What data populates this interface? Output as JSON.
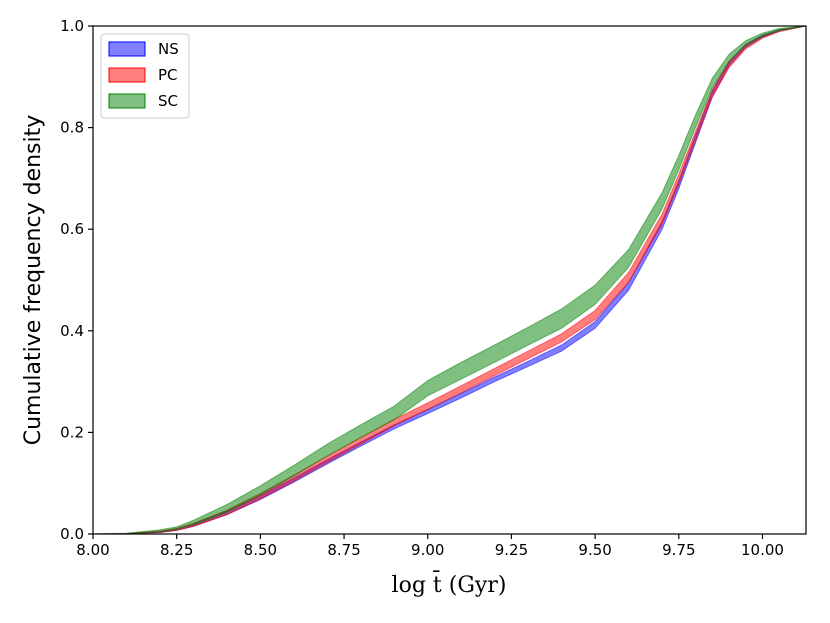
{
  "chart_data": {
    "type": "area",
    "title": "",
    "xlabel": "log t̄ (Gyr)",
    "ylabel": "Cumulative frequency density",
    "xlim": [
      8.0,
      10.13
    ],
    "ylim": [
      0.0,
      1.0
    ],
    "xticks": [
      "8.00",
      "8.25",
      "8.50",
      "8.75",
      "9.00",
      "9.25",
      "9.50",
      "9.75",
      "10.00"
    ],
    "yticks": [
      "0.0",
      "0.2",
      "0.4",
      "0.6",
      "0.8",
      "1.0"
    ],
    "xtick_values": [
      8.0,
      8.25,
      8.5,
      8.75,
      9.0,
      9.25,
      9.5,
      9.75,
      10.0
    ],
    "ytick_values": [
      0.0,
      0.2,
      0.4,
      0.6,
      0.8,
      1.0
    ],
    "legend_position": "top-left",
    "grid": false,
    "x": [
      8.0,
      8.1,
      8.2,
      8.25,
      8.3,
      8.4,
      8.5,
      8.6,
      8.7,
      8.8,
      8.9,
      9.0,
      9.1,
      9.2,
      9.3,
      9.4,
      9.5,
      9.6,
      9.7,
      9.75,
      9.8,
      9.85,
      9.9,
      9.95,
      10.0,
      10.05,
      10.13
    ],
    "series": [
      {
        "name": "NS",
        "color": "#0000ff",
        "lower": [
          0.0,
          0.0005,
          0.003,
          0.007,
          0.015,
          0.038,
          0.068,
          0.102,
          0.138,
          0.173,
          0.207,
          0.237,
          0.268,
          0.3,
          0.33,
          0.36,
          0.405,
          0.48,
          0.6,
          0.68,
          0.77,
          0.86,
          0.922,
          0.958,
          0.978,
          0.99,
          1.0
        ],
        "upper": [
          0.0,
          0.001,
          0.005,
          0.01,
          0.02,
          0.045,
          0.076,
          0.11,
          0.146,
          0.181,
          0.215,
          0.245,
          0.277,
          0.309,
          0.34,
          0.372,
          0.418,
          0.495,
          0.615,
          0.695,
          0.785,
          0.872,
          0.93,
          0.964,
          0.982,
          0.993,
          1.0
        ]
      },
      {
        "name": "PC",
        "color": "#ff0000",
        "lower": [
          0.0,
          0.0005,
          0.003,
          0.007,
          0.015,
          0.038,
          0.069,
          0.104,
          0.141,
          0.177,
          0.213,
          0.245,
          0.278,
          0.312,
          0.345,
          0.378,
          0.422,
          0.495,
          0.61,
          0.688,
          0.775,
          0.86,
          0.918,
          0.955,
          0.976,
          0.989,
          1.0
        ],
        "upper": [
          0.0,
          0.001,
          0.006,
          0.011,
          0.021,
          0.047,
          0.08,
          0.116,
          0.153,
          0.19,
          0.226,
          0.258,
          0.292,
          0.326,
          0.36,
          0.394,
          0.44,
          0.515,
          0.63,
          0.708,
          0.792,
          0.874,
          0.93,
          0.963,
          0.981,
          0.992,
          1.0
        ]
      },
      {
        "name": "SC",
        "color": "#008000",
        "lower": [
          0.0,
          0.0008,
          0.004,
          0.009,
          0.018,
          0.043,
          0.077,
          0.114,
          0.154,
          0.19,
          0.225,
          0.272,
          0.305,
          0.338,
          0.372,
          0.405,
          0.452,
          0.525,
          0.64,
          0.717,
          0.8,
          0.878,
          0.93,
          0.962,
          0.98,
          0.991,
          1.0
        ],
        "upper": [
          0.0,
          0.0015,
          0.008,
          0.014,
          0.027,
          0.058,
          0.095,
          0.135,
          0.177,
          0.215,
          0.252,
          0.302,
          0.338,
          0.372,
          0.407,
          0.443,
          0.49,
          0.56,
          0.672,
          0.745,
          0.825,
          0.897,
          0.944,
          0.971,
          0.986,
          0.995,
          1.0
        ]
      }
    ]
  }
}
